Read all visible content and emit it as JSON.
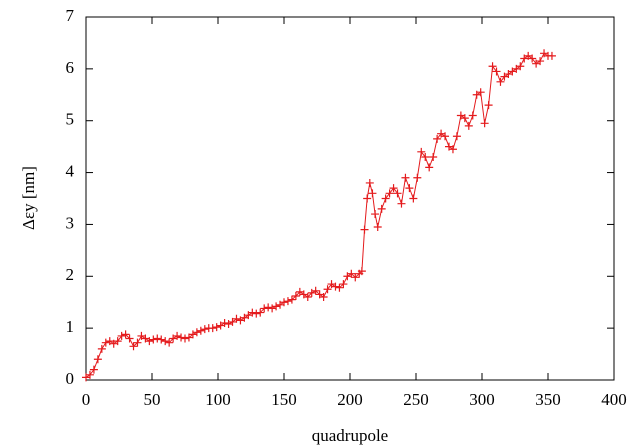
{
  "chart_data": {
    "type": "line",
    "x_label": "quadrupole",
    "y_label": "Δεy [nm]",
    "color": "#e41a1c",
    "marker": "+",
    "x": [
      0,
      3,
      6,
      9,
      12,
      15,
      18,
      21,
      24,
      27,
      30,
      33,
      36,
      39,
      42,
      45,
      48,
      51,
      54,
      57,
      60,
      63,
      66,
      69,
      72,
      75,
      78,
      81,
      84,
      87,
      90,
      93,
      96,
      99,
      102,
      105,
      108,
      111,
      114,
      117,
      120,
      123,
      126,
      129,
      132,
      135,
      138,
      141,
      144,
      147,
      150,
      153,
      156,
      159,
      162,
      165,
      168,
      171,
      174,
      177,
      180,
      183,
      186,
      189,
      192,
      195,
      198,
      201,
      204,
      207,
      209,
      211,
      213,
      215,
      217,
      219,
      221,
      224,
      227,
      230,
      233,
      236,
      239,
      242,
      245,
      248,
      251,
      254,
      257,
      260,
      263,
      266,
      269,
      272,
      275,
      278,
      281,
      284,
      287,
      290,
      293,
      296,
      299,
      302,
      305,
      308,
      311,
      314,
      317,
      320,
      323,
      326,
      329,
      332,
      335,
      338,
      341,
      344,
      347,
      350,
      353
    ],
    "values": [
      0.05,
      0.1,
      0.2,
      0.4,
      0.6,
      0.72,
      0.75,
      0.7,
      0.75,
      0.85,
      0.88,
      0.8,
      0.65,
      0.72,
      0.85,
      0.8,
      0.75,
      0.78,
      0.8,
      0.78,
      0.75,
      0.72,
      0.8,
      0.85,
      0.82,
      0.8,
      0.82,
      0.88,
      0.92,
      0.95,
      0.98,
      1.0,
      1.0,
      1.02,
      1.05,
      1.1,
      1.08,
      1.12,
      1.18,
      1.15,
      1.2,
      1.25,
      1.3,
      1.28,
      1.3,
      1.38,
      1.4,
      1.38,
      1.42,
      1.45,
      1.5,
      1.52,
      1.55,
      1.62,
      1.7,
      1.65,
      1.6,
      1.68,
      1.72,
      1.65,
      1.6,
      1.75,
      1.85,
      1.8,
      1.78,
      1.85,
      2.0,
      2.05,
      1.98,
      2.05,
      2.1,
      2.9,
      3.5,
      3.8,
      3.6,
      3.2,
      2.95,
      3.3,
      3.5,
      3.6,
      3.7,
      3.6,
      3.4,
      3.9,
      3.7,
      3.5,
      3.9,
      4.4,
      4.3,
      4.1,
      4.3,
      4.65,
      4.75,
      4.7,
      4.5,
      4.45,
      4.7,
      5.1,
      5.05,
      4.9,
      5.1,
      5.5,
      5.55,
      4.95,
      5.3,
      6.05,
      5.95,
      5.75,
      5.85,
      5.9,
      5.95,
      6.0,
      6.05,
      6.2,
      6.25,
      6.2,
      6.1,
      6.15,
      6.3,
      6.25,
      6.25
    ],
    "xlim": [
      0,
      400
    ],
    "xticks": [
      0,
      50,
      100,
      150,
      200,
      250,
      300,
      350,
      400
    ],
    "ylim": [
      0,
      7
    ],
    "yticks": [
      0,
      1,
      2,
      3,
      4,
      5,
      6,
      7
    ]
  }
}
